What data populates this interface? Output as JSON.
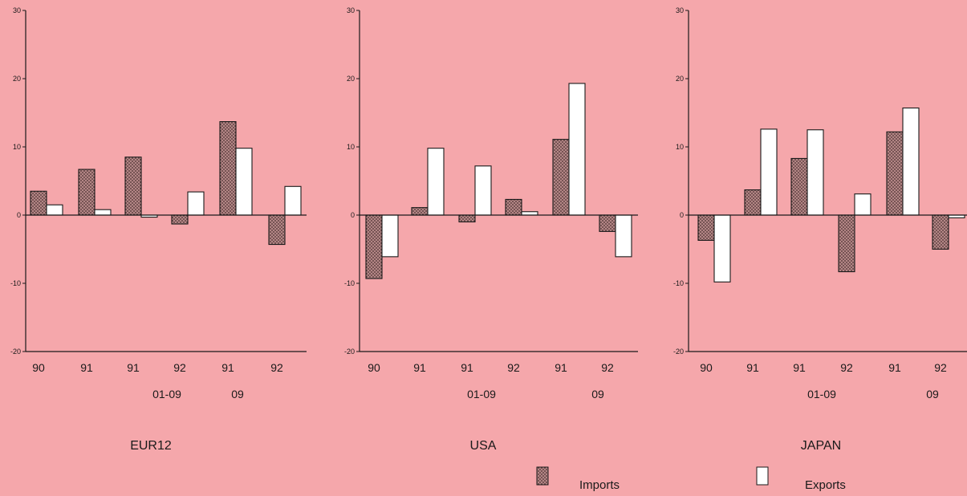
{
  "colors": {
    "background": "#f5a7ab",
    "imports_fill": "#a87878",
    "exports_fill": "#ffffff",
    "stroke": "#1a1a1a"
  },
  "legend": {
    "imports_label": "Imports",
    "exports_label": "Exports"
  },
  "chart_data": [
    {
      "type": "bar",
      "title": "EUR12",
      "ylim": [
        -20,
        30
      ],
      "yticks": [
        30,
        20,
        10,
        0,
        -10,
        -20
      ],
      "tick_labels": [
        "90",
        "91",
        "91",
        "92",
        "91",
        "92"
      ],
      "group_labels": [
        "01-09",
        "09"
      ],
      "series": [
        {
          "name": "Imports",
          "values": [
            3.5,
            6.7,
            8.5,
            -1.3,
            13.7,
            -4.3
          ]
        },
        {
          "name": "Exports",
          "values": [
            1.5,
            0.8,
            -0.3,
            3.4,
            9.8,
            4.2
          ]
        }
      ]
    },
    {
      "type": "bar",
      "title": "USA",
      "ylim": [
        -20,
        30
      ],
      "yticks": [
        30,
        20,
        10,
        0,
        -10,
        -20
      ],
      "tick_labels": [
        "90",
        "91",
        "91",
        "92",
        "91",
        "92"
      ],
      "group_labels": [
        "01-09",
        "09"
      ],
      "series": [
        {
          "name": "Imports",
          "values": [
            -9.3,
            1.1,
            -1.0,
            2.3,
            11.1,
            -2.4
          ]
        },
        {
          "name": "Exports",
          "values": [
            -6.1,
            9.8,
            7.2,
            0.5,
            19.3,
            -6.1
          ]
        }
      ]
    },
    {
      "type": "bar",
      "title": "JAPAN",
      "ylim": [
        -20,
        30
      ],
      "yticks": [
        30,
        20,
        10,
        0,
        -10,
        -20
      ],
      "tick_labels": [
        "90",
        "91",
        "91",
        "92",
        "91",
        "92"
      ],
      "group_labels": [
        "01-09",
        "09"
      ],
      "series": [
        {
          "name": "Imports",
          "values": [
            -3.7,
            3.7,
            8.3,
            -8.3,
            12.2,
            -5.0
          ]
        },
        {
          "name": "Exports",
          "values": [
            -9.8,
            12.6,
            12.5,
            3.1,
            15.7,
            -0.4
          ]
        }
      ]
    }
  ]
}
